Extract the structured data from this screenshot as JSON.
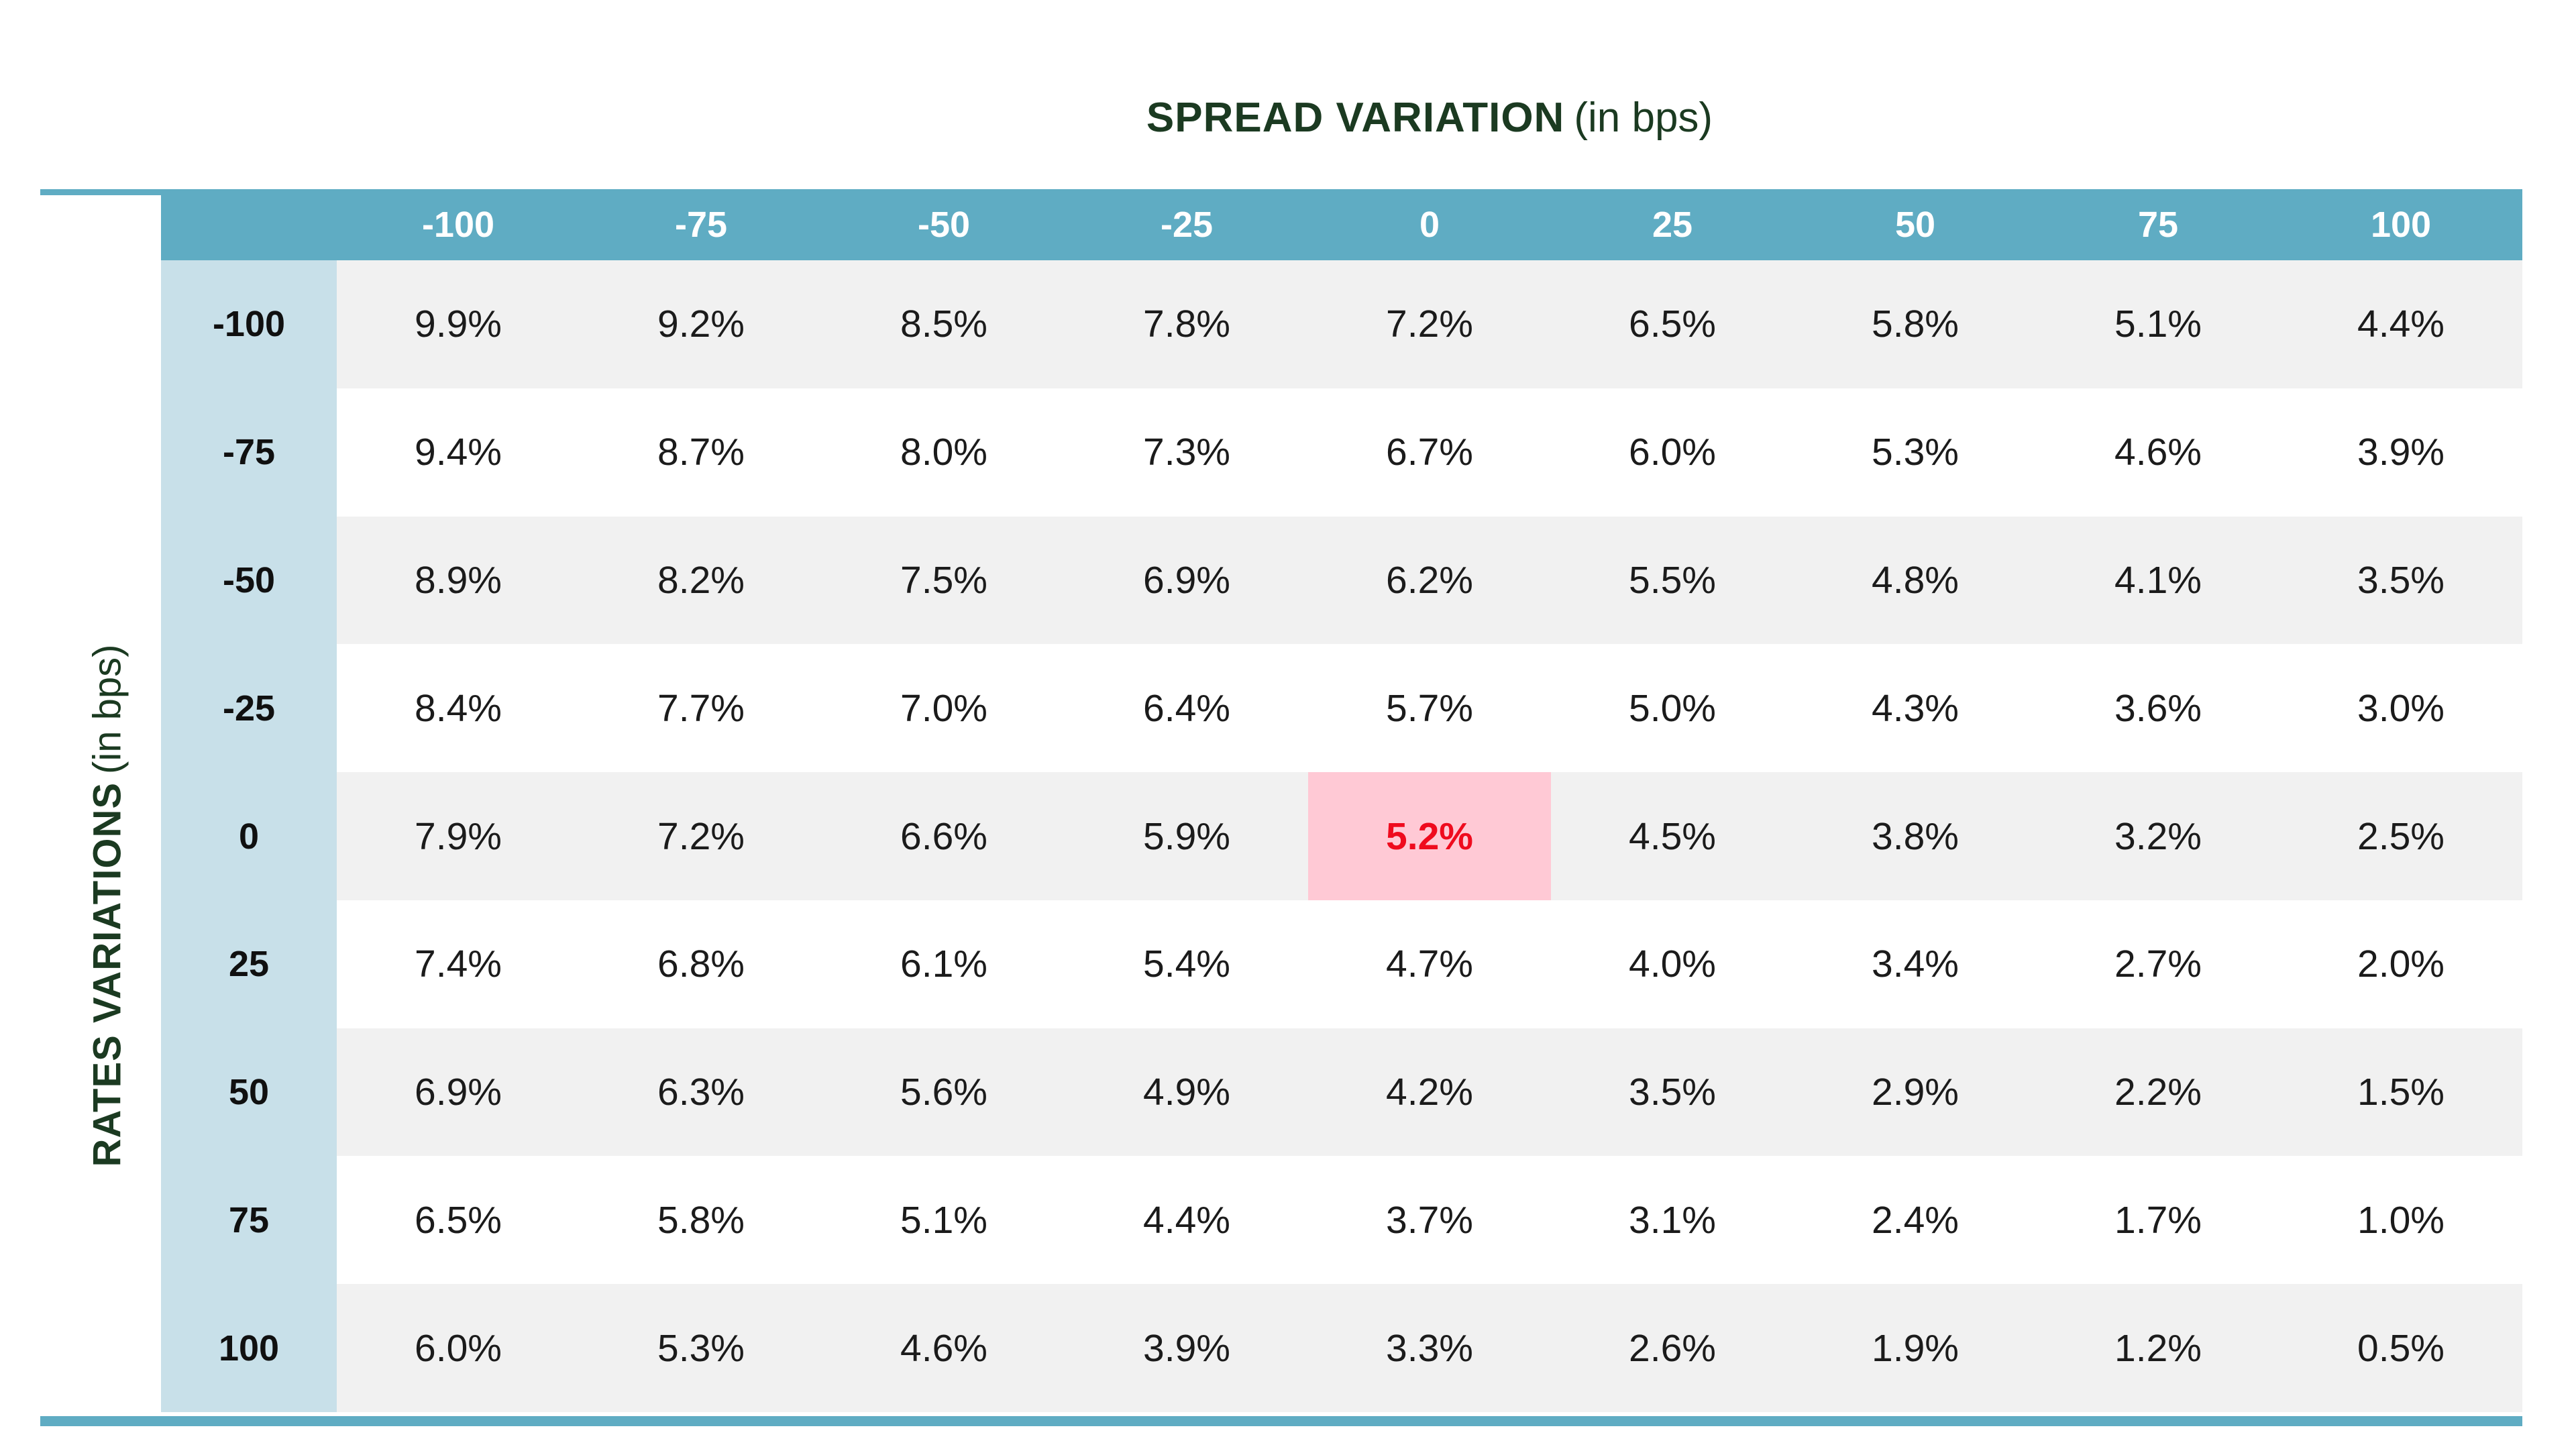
{
  "title": {
    "main": "SPREAD VARIATION",
    "suffix": "(in bps)"
  },
  "y_axis_label": {
    "main": "RATES VARIATIONS",
    "suffix": "(in bps)"
  },
  "table": {
    "column_axis_title": "SPREAD VARIATION (in bps)",
    "row_axis_title": "RATES VARIATIONS (in bps)",
    "columns": [
      "-100",
      "-75",
      "-50",
      "-25",
      "0",
      "25",
      "50",
      "75",
      "100"
    ],
    "rows": [
      {
        "label": "-100",
        "values": [
          "9.9%",
          "9.2%",
          "8.5%",
          "7.8%",
          "7.2%",
          "6.5%",
          "5.8%",
          "5.1%",
          "4.4%"
        ]
      },
      {
        "label": "-75",
        "values": [
          "9.4%",
          "8.7%",
          "8.0%",
          "7.3%",
          "6.7%",
          "6.0%",
          "5.3%",
          "4.6%",
          "3.9%"
        ]
      },
      {
        "label": "-50",
        "values": [
          "8.9%",
          "8.2%",
          "7.5%",
          "6.9%",
          "6.2%",
          "5.5%",
          "4.8%",
          "4.1%",
          "3.5%"
        ]
      },
      {
        "label": "-25",
        "values": [
          "8.4%",
          "7.7%",
          "7.0%",
          "6.4%",
          "5.7%",
          "5.0%",
          "4.3%",
          "3.6%",
          "3.0%"
        ]
      },
      {
        "label": "0",
        "values": [
          "7.9%",
          "7.2%",
          "6.6%",
          "5.9%",
          "5.2%",
          "4.5%",
          "3.8%",
          "3.2%",
          "2.5%"
        ]
      },
      {
        "label": "25",
        "values": [
          "7.4%",
          "6.8%",
          "6.1%",
          "5.4%",
          "4.7%",
          "4.0%",
          "3.4%",
          "2.7%",
          "2.0%"
        ]
      },
      {
        "label": "50",
        "values": [
          "6.9%",
          "6.3%",
          "5.6%",
          "4.9%",
          "4.2%",
          "3.5%",
          "2.9%",
          "2.2%",
          "1.5%"
        ]
      },
      {
        "label": "75",
        "values": [
          "6.5%",
          "5.8%",
          "5.1%",
          "4.4%",
          "3.7%",
          "3.1%",
          "2.4%",
          "1.7%",
          "1.0%"
        ]
      },
      {
        "label": "100",
        "values": [
          "6.0%",
          "5.3%",
          "4.6%",
          "3.9%",
          "3.3%",
          "2.6%",
          "1.9%",
          "1.2%",
          "0.5%"
        ]
      }
    ],
    "highlight": {
      "row_index": 4,
      "col_index": 4,
      "value": "5.2%",
      "row_label": "0",
      "col_label": "0"
    }
  },
  "colors": {
    "header_teal": "#5FACC3",
    "row_label_blue": "#C8E0E9",
    "row_alt_gray": "#F1F1F1",
    "row_white": "#FFFFFF",
    "highlight_pink": "#FFC9D5",
    "highlight_red": "#EF0B1E",
    "axis_title_green": "#1B3A21",
    "cell_text": "#1B1B1B"
  },
  "chart_data": {
    "type": "heatmap",
    "title": "SPREAD VARIATION (in bps)",
    "xlabel": "SPREAD VARIATION (in bps)",
    "ylabel": "RATES VARIATIONS (in bps)",
    "x": [
      -100,
      -75,
      -50,
      -25,
      0,
      25,
      50,
      75,
      100
    ],
    "y": [
      -100,
      -75,
      -50,
      -25,
      0,
      25,
      50,
      75,
      100
    ],
    "values_unit": "percent",
    "values": [
      [
        9.9,
        9.2,
        8.5,
        7.8,
        7.2,
        6.5,
        5.8,
        5.1,
        4.4
      ],
      [
        9.4,
        8.7,
        8.0,
        7.3,
        6.7,
        6.0,
        5.3,
        4.6,
        3.9
      ],
      [
        8.9,
        8.2,
        7.5,
        6.9,
        6.2,
        5.5,
        4.8,
        4.1,
        3.5
      ],
      [
        8.4,
        7.7,
        7.0,
        6.4,
        5.7,
        5.0,
        4.3,
        3.6,
        3.0
      ],
      [
        7.9,
        7.2,
        6.6,
        5.9,
        5.2,
        4.5,
        3.8,
        3.2,
        2.5
      ],
      [
        7.4,
        6.8,
        6.1,
        5.4,
        4.7,
        4.0,
        3.4,
        2.7,
        2.0
      ],
      [
        6.9,
        6.3,
        5.6,
        4.9,
        4.2,
        3.5,
        2.9,
        2.2,
        1.5
      ],
      [
        6.5,
        5.8,
        5.1,
        4.4,
        3.7,
        3.1,
        2.4,
        1.7,
        1.0
      ],
      [
        6.0,
        5.3,
        4.6,
        3.9,
        3.3,
        2.6,
        1.9,
        1.2,
        0.5
      ]
    ],
    "highlighted_point": {
      "x": 0,
      "y": 0,
      "value": 5.2
    },
    "legend_position": "none",
    "grid": false
  }
}
